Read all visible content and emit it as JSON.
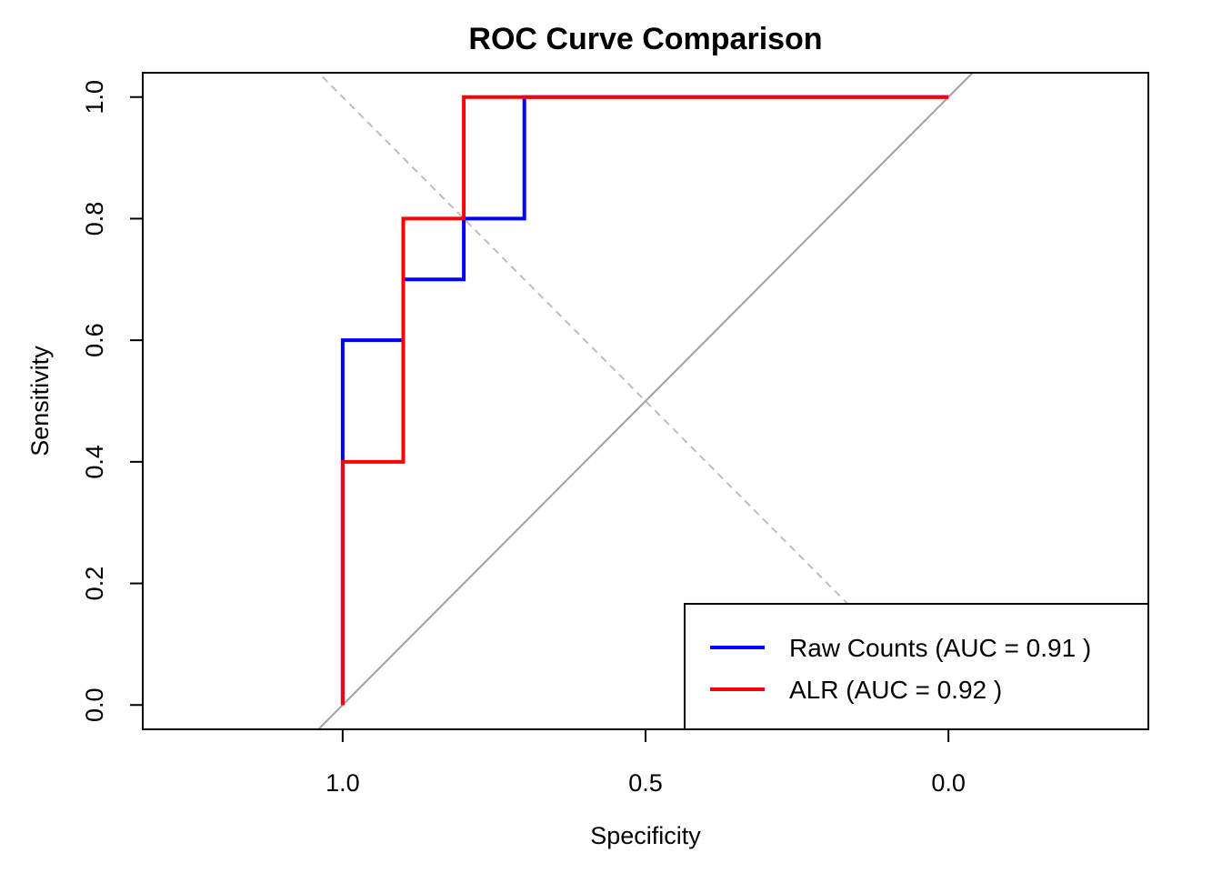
{
  "chart_data": {
    "type": "line",
    "title": "ROC Curve Comparison",
    "xlabel": "Specificity",
    "ylabel": "Sensitivity",
    "xlim": [
      1.33,
      -0.33
    ],
    "ylim": [
      -0.04,
      1.04
    ],
    "x_axis_reversed": true,
    "x_ticks": [
      1.0,
      0.5,
      0.0
    ],
    "x_tick_labels": [
      "1.0",
      "0.5",
      "0.0"
    ],
    "y_ticks": [
      0.0,
      0.2,
      0.4,
      0.6,
      0.8,
      1.0
    ],
    "y_tick_labels": [
      "0.0",
      "0.2",
      "0.4",
      "0.6",
      "0.8",
      "1.0"
    ],
    "grid": false,
    "legend_position": "bottom-right",
    "reference_lines": [
      {
        "kind": "diagonal",
        "style": "solid",
        "color": "#a0a0a0",
        "points": [
          [
            1.0,
            0.0
          ],
          [
            0.0,
            1.0
          ]
        ]
      },
      {
        "kind": "diagonal",
        "style": "dashed",
        "color": "#bdbdbd",
        "points": [
          [
            1.0,
            1.0
          ],
          [
            0.0,
            0.0
          ]
        ]
      }
    ],
    "series": [
      {
        "name": "Raw Counts (AUC = 0.91 )",
        "color": "#0000ff",
        "specificity": [
          1.0,
          1.0,
          1.0,
          0.9,
          0.9,
          0.8,
          0.8,
          0.7,
          0.7,
          0.0
        ],
        "sensitivity": [
          0.0,
          0.4,
          0.6,
          0.6,
          0.7,
          0.7,
          0.8,
          0.8,
          1.0,
          1.0
        ]
      },
      {
        "name": "ALR (AUC = 0.92 )",
        "color": "#ff0000",
        "specificity": [
          1.0,
          1.0,
          0.9,
          0.9,
          0.8,
          0.8,
          0.0
        ],
        "sensitivity": [
          0.0,
          0.4,
          0.4,
          0.8,
          0.8,
          1.0,
          1.0
        ]
      }
    ]
  }
}
